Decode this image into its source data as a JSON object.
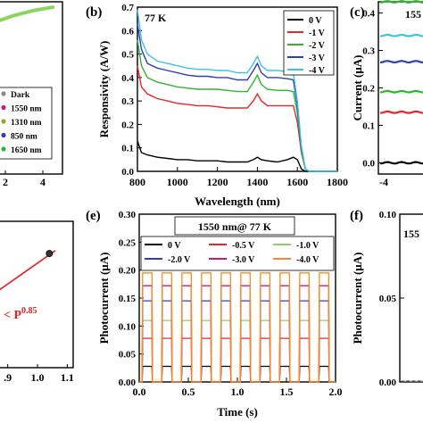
{
  "panel_labels": {
    "b": "(b)",
    "c": "(c)",
    "e": "(e)",
    "f": "(f)"
  },
  "colors": {
    "black": "#000000",
    "red": "#e8262a",
    "green": "#33b233",
    "blue": "#2b3fb8",
    "cyan": "#3ec3e0",
    "orange": "#ff8c1a",
    "magenta": "#c9187f",
    "olive": "#9aa23c",
    "fit_red": "#e61e1e",
    "light_green": "#8ad65a"
  },
  "chart_data": [
    {
      "id": "a",
      "type": "line",
      "x_ticks": [
        "2",
        "4"
      ],
      "legend": [
        "Dark",
        "1550 nm",
        "1310 nm",
        "850 nm",
        "1650 nm"
      ],
      "legend_colors": [
        "#8a8a8a",
        "#c9187f",
        "#9aa23c",
        "#2b3fb8",
        "#33b233"
      ],
      "series": [
        {
          "x": [
            0,
            0.5,
            1,
            1.5,
            2,
            2.5,
            3,
            3.5,
            4
          ],
          "y": [
            0.83,
            0.86,
            0.88,
            0.9,
            0.92,
            0.935,
            0.95,
            0.96,
            0.97
          ]
        }
      ]
    },
    {
      "id": "b",
      "type": "line",
      "annotation": "77 K",
      "xlabel": "Wavelength (nm)",
      "ylabel": "Responsivity (A/W)",
      "xlim": [
        800,
        1800
      ],
      "ylim": [
        0,
        0.7
      ],
      "x_ticks": [
        "800",
        "1000",
        "1200",
        "1400",
        "1600",
        "1800"
      ],
      "x_tick_values": [
        800,
        1000,
        1200,
        1400,
        1600,
        1800
      ],
      "y_ticks": [
        "0.0",
        "0.1",
        "0.2",
        "0.3",
        "0.4",
        "0.5",
        "0.6",
        "0.7"
      ],
      "y_tick_values": [
        0,
        0.1,
        0.2,
        0.3,
        0.4,
        0.5,
        0.6,
        0.7
      ],
      "legend": [
        "0 V",
        "-1 V",
        "-2 V",
        "-3 V",
        "-4 V"
      ],
      "x": [
        800,
        820,
        850,
        900,
        950,
        1000,
        1050,
        1100,
        1150,
        1200,
        1250,
        1300,
        1350,
        1380,
        1400,
        1420,
        1450,
        1500,
        1550,
        1580,
        1600,
        1620,
        1640,
        1660,
        1700,
        1800
      ],
      "series": [
        {
          "name": "0 V",
          "color": "#000000",
          "y": [
            0.13,
            0.08,
            0.07,
            0.06,
            0.055,
            0.05,
            0.05,
            0.045,
            0.045,
            0.045,
            0.04,
            0.04,
            0.04,
            0.05,
            0.06,
            0.05,
            0.045,
            0.04,
            0.05,
            0.06,
            0.05,
            0.01,
            0,
            0,
            0,
            0
          ]
        },
        {
          "name": "-1 V",
          "color": "#e8262a",
          "y": [
            0.45,
            0.36,
            0.33,
            0.31,
            0.3,
            0.29,
            0.285,
            0.28,
            0.28,
            0.275,
            0.27,
            0.27,
            0.27,
            0.3,
            0.33,
            0.3,
            0.28,
            0.28,
            0.28,
            0.28,
            0.21,
            0.08,
            0.01,
            0,
            0,
            0
          ]
        },
        {
          "name": "-2 V",
          "color": "#33b233",
          "y": [
            0.56,
            0.45,
            0.4,
            0.38,
            0.37,
            0.36,
            0.355,
            0.35,
            0.35,
            0.35,
            0.345,
            0.34,
            0.34,
            0.38,
            0.41,
            0.37,
            0.35,
            0.345,
            0.345,
            0.34,
            0.25,
            0.09,
            0.01,
            0,
            0,
            0
          ]
        },
        {
          "name": "-3 V",
          "color": "#2b3fb8",
          "y": [
            0.63,
            0.52,
            0.46,
            0.44,
            0.43,
            0.42,
            0.41,
            0.405,
            0.405,
            0.4,
            0.4,
            0.39,
            0.39,
            0.43,
            0.46,
            0.42,
            0.4,
            0.4,
            0.395,
            0.39,
            0.28,
            0.1,
            0.01,
            0,
            0,
            0
          ]
        },
        {
          "name": "-4 V",
          "color": "#3ec3e0",
          "y": [
            0.69,
            0.56,
            0.5,
            0.47,
            0.46,
            0.45,
            0.44,
            0.435,
            0.435,
            0.43,
            0.43,
            0.42,
            0.42,
            0.46,
            0.49,
            0.45,
            0.43,
            0.43,
            0.425,
            0.42,
            0.3,
            0.11,
            0.01,
            0,
            0,
            0
          ]
        }
      ]
    },
    {
      "id": "c",
      "type": "line",
      "title": "155",
      "ylabel": "Current (μA)",
      "ylim": [
        -0.03,
        0.43
      ],
      "y_ticks": [
        "0.0",
        "0.1",
        "0.2",
        "0.3",
        "0.4"
      ],
      "y_tick_values": [
        0,
        0.1,
        0.2,
        0.3,
        0.4
      ],
      "x_ticks": [
        "-4"
      ],
      "levels": [
        {
          "color": "#000000",
          "y": 0.0
        },
        {
          "color": "#e8262a",
          "y": 0.135
        },
        {
          "color": "#33b233",
          "y": 0.19
        },
        {
          "color": "#2b3fb8",
          "y": 0.27
        },
        {
          "color": "#3ec3e0",
          "y": 0.34
        },
        {
          "color": "#33b233",
          "y": 0.43
        }
      ]
    },
    {
      "id": "d",
      "type": "scatter",
      "annotation_main": "< P",
      "annotation_exp": "0.85",
      "x_ticks": [
        ".9",
        "1.0",
        "1.1"
      ],
      "x_tick_values": [
        0.9,
        1.0,
        1.1
      ],
      "xlim": [
        0.85,
        1.12
      ],
      "ylim": [
        0,
        1
      ],
      "points": [
        {
          "x": 1.04,
          "y": 0.78
        }
      ],
      "fit": [
        {
          "x": 0.85,
          "y": 0.5
        },
        {
          "x": 1.06,
          "y": 0.8
        }
      ]
    },
    {
      "id": "e",
      "type": "line",
      "title": "1550 nm@ 77 K",
      "xlabel": "Time (s)",
      "ylabel": "Photocurrent (μA)",
      "xlim": [
        0,
        2.0
      ],
      "ylim": [
        0,
        0.3
      ],
      "x_ticks": [
        "0.0",
        "0.5",
        "1.0",
        "1.5",
        "2.0"
      ],
      "x_tick_values": [
        0,
        0.5,
        1.0,
        1.5,
        2.0
      ],
      "y_ticks": [
        "0.00",
        "0.05",
        "0.10",
        "0.15",
        "0.20",
        "0.25",
        "0.30"
      ],
      "y_tick_values": [
        0,
        0.05,
        0.1,
        0.15,
        0.2,
        0.25,
        0.3
      ],
      "period": 0.2,
      "start": 0.03,
      "on_duration": 0.1,
      "legend": [
        "0 V",
        "-0.5 V",
        "-1.0 V",
        "-2.0 V",
        "-3.0 V",
        "-4.0 V"
      ],
      "series": [
        {
          "name": "0 V",
          "color": "#000000",
          "on": 0.028
        },
        {
          "name": "-0.5 V",
          "color": "#e8262a",
          "on": 0.078
        },
        {
          "name": "-1.0 V",
          "color": "#8ad65a",
          "on": 0.11
        },
        {
          "name": "-2.0 V",
          "color": "#2b3fb8",
          "on": 0.145
        },
        {
          "name": "-3.0 V",
          "color": "#c9187f",
          "on": 0.172
        },
        {
          "name": "-4.0 V",
          "color": "#ff8c1a",
          "on": 0.195
        }
      ]
    },
    {
      "id": "f",
      "type": "line",
      "title": "155",
      "ylabel": "Photocurrent (μA)",
      "ylim": [
        0,
        0.1
      ],
      "y_ticks": [
        "0.00",
        "0.05",
        "0.10"
      ],
      "y_tick_values": [
        0,
        0.05,
        0.1
      ]
    }
  ]
}
